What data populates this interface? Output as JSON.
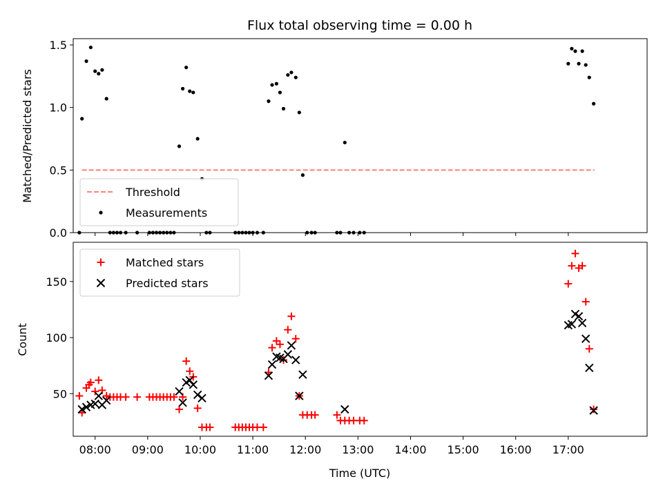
{
  "chart_data": {
    "title": "Flux total observing time = 0.00 h",
    "xlabel": "Time (UTC)",
    "x_ticks": [
      "08:00",
      "09:00",
      "10:00",
      "11:00",
      "12:00",
      "13:00",
      "14:00",
      "15:00",
      "16:00",
      "17:00"
    ],
    "xlim": [
      "07:35",
      "18:30"
    ],
    "panels": [
      {
        "type": "scatter",
        "ylabel": "Matched/Predicted stars",
        "ylim": [
          0,
          1.55
        ],
        "y_ticks": [
          "0.0",
          "0.5",
          "1.0",
          "1.5"
        ],
        "y_tick_values": [
          0,
          0.5,
          1.0,
          1.5
        ],
        "legend_position": "lower-left",
        "threshold": {
          "name": "Threshold",
          "value": 0.5,
          "x_start": "07:45",
          "x_end": "17:30",
          "color": "#ff7f7f",
          "style": "dashed"
        },
        "series": [
          {
            "name": "Measurements",
            "marker": "dot",
            "color": "#000000",
            "points": [
              [
                "07:42",
                0.0
              ],
              [
                "07:45",
                0.91
              ],
              [
                "07:50",
                1.37
              ],
              [
                "07:55",
                1.48
              ],
              [
                "08:00",
                1.29
              ],
              [
                "08:04",
                1.27
              ],
              [
                "08:08",
                1.3
              ],
              [
                "08:13",
                1.07
              ],
              [
                "08:17",
                0.0
              ],
              [
                "08:21",
                0.0
              ],
              [
                "08:25",
                0.0
              ],
              [
                "08:29",
                0.0
              ],
              [
                "08:35",
                0.0
              ],
              [
                "08:48",
                0.0
              ],
              [
                "09:02",
                0.0
              ],
              [
                "09:06",
                0.0
              ],
              [
                "09:10",
                0.0
              ],
              [
                "09:14",
                0.0
              ],
              [
                "09:18",
                0.0
              ],
              [
                "09:22",
                0.0
              ],
              [
                "09:26",
                0.0
              ],
              [
                "09:30",
                0.0
              ],
              [
                "09:36",
                0.69
              ],
              [
                "09:40",
                1.15
              ],
              [
                "09:44",
                1.32
              ],
              [
                "09:48",
                1.13
              ],
              [
                "09:52",
                1.12
              ],
              [
                "09:57",
                0.75
              ],
              [
                "10:02",
                0.43
              ],
              [
                "10:07",
                0.0
              ],
              [
                "10:11",
                0.0
              ],
              [
                "10:40",
                0.0
              ],
              [
                "10:44",
                0.0
              ],
              [
                "10:48",
                0.0
              ],
              [
                "10:52",
                0.0
              ],
              [
                "10:56",
                0.0
              ],
              [
                "11:00",
                0.0
              ],
              [
                "11:05",
                0.0
              ],
              [
                "11:12",
                0.0
              ],
              [
                "11:18",
                1.05
              ],
              [
                "11:22",
                1.18
              ],
              [
                "11:27",
                1.19
              ],
              [
                "11:31",
                1.12
              ],
              [
                "11:35",
                0.99
              ],
              [
                "11:40",
                1.26
              ],
              [
                "11:44",
                1.28
              ],
              [
                "11:49",
                1.24
              ],
              [
                "11:53",
                0.96
              ],
              [
                "11:57",
                0.46
              ],
              [
                "12:02",
                0.0
              ],
              [
                "12:07",
                0.0
              ],
              [
                "12:11",
                0.0
              ],
              [
                "12:36",
                0.0
              ],
              [
                "12:40",
                0.0
              ],
              [
                "12:45",
                0.72
              ],
              [
                "12:50",
                0.0
              ],
              [
                "12:55",
                0.0
              ],
              [
                "13:02",
                0.0
              ],
              [
                "13:07",
                0.0
              ],
              [
                "17:00",
                1.35
              ],
              [
                "17:04",
                1.47
              ],
              [
                "17:08",
                1.45
              ],
              [
                "17:12",
                1.35
              ],
              [
                "17:16",
                1.45
              ],
              [
                "17:20",
                1.34
              ],
              [
                "17:24",
                1.24
              ],
              [
                "17:29",
                1.03
              ]
            ]
          }
        ]
      },
      {
        "type": "scatter",
        "ylabel": "Count",
        "ylim": [
          12,
          185
        ],
        "y_ticks": [
          "50",
          "100",
          "150"
        ],
        "y_tick_values": [
          50,
          100,
          150
        ],
        "legend_position": "upper-left",
        "series": [
          {
            "name": "Matched stars",
            "marker": "plus",
            "color": "#ff0000",
            "points": [
              [
                "07:42",
                48
              ],
              [
                "07:45",
                33
              ],
              [
                "07:50",
                55
              ],
              [
                "07:53",
                58
              ],
              [
                "07:55",
                60
              ],
              [
                "08:00",
                52
              ],
              [
                "08:04",
                62
              ],
              [
                "08:08",
                53
              ],
              [
                "08:13",
                48
              ],
              [
                "08:17",
                47
              ],
              [
                "08:21",
                47
              ],
              [
                "08:25",
                47
              ],
              [
                "08:29",
                47
              ],
              [
                "08:35",
                47
              ],
              [
                "08:48",
                47
              ],
              [
                "09:02",
                47
              ],
              [
                "09:06",
                47
              ],
              [
                "09:10",
                47
              ],
              [
                "09:14",
                47
              ],
              [
                "09:18",
                47
              ],
              [
                "09:22",
                47
              ],
              [
                "09:26",
                47
              ],
              [
                "09:30",
                47
              ],
              [
                "09:36",
                36
              ],
              [
                "09:40",
                47
              ],
              [
                "09:44",
                79
              ],
              [
                "09:48",
                70
              ],
              [
                "09:52",
                65
              ],
              [
                "09:57",
                37
              ],
              [
                "10:02",
                20
              ],
              [
                "10:07",
                20
              ],
              [
                "10:11",
                20
              ],
              [
                "10:40",
                20
              ],
              [
                "10:44",
                20
              ],
              [
                "10:48",
                20
              ],
              [
                "10:52",
                20
              ],
              [
                "10:56",
                20
              ],
              [
                "11:00",
                20
              ],
              [
                "11:05",
                20
              ],
              [
                "11:12",
                20
              ],
              [
                "11:18",
                69
              ],
              [
                "11:22",
                91
              ],
              [
                "11:27",
                97
              ],
              [
                "11:31",
                94
              ],
              [
                "11:35",
                80
              ],
              [
                "11:40",
                107
              ],
              [
                "11:44",
                119
              ],
              [
                "11:49",
                99
              ],
              [
                "11:53",
                48
              ],
              [
                "11:57",
                31
              ],
              [
                "12:02",
                31
              ],
              [
                "12:07",
                31
              ],
              [
                "12:11",
                31
              ],
              [
                "12:36",
                31
              ],
              [
                "12:40",
                26
              ],
              [
                "12:45",
                26
              ],
              [
                "12:50",
                26
              ],
              [
                "12:55",
                26
              ],
              [
                "13:02",
                26
              ],
              [
                "13:07",
                26
              ],
              [
                "17:00",
                148
              ],
              [
                "17:04",
                164
              ],
              [
                "17:08",
                175
              ],
              [
                "17:12",
                162
              ],
              [
                "17:16",
                164
              ],
              [
                "17:20",
                132
              ],
              [
                "17:24",
                90
              ],
              [
                "17:29",
                36
              ]
            ]
          },
          {
            "name": "Predicted stars",
            "marker": "x",
            "color": "#000000",
            "points": [
              [
                "07:45",
                36
              ],
              [
                "07:50",
                38
              ],
              [
                "07:55",
                40
              ],
              [
                "08:00",
                41
              ],
              [
                "08:04",
                48
              ],
              [
                "08:08",
                40
              ],
              [
                "08:13",
                44
              ],
              [
                "09:36",
                52
              ],
              [
                "09:40",
                42
              ],
              [
                "09:44",
                60
              ],
              [
                "09:48",
                62
              ],
              [
                "09:52",
                58
              ],
              [
                "09:57",
                49
              ],
              [
                "10:02",
                46
              ],
              [
                "11:18",
                66
              ],
              [
                "11:22",
                76
              ],
              [
                "11:27",
                83
              ],
              [
                "11:31",
                82
              ],
              [
                "11:35",
                81
              ],
              [
                "11:40",
                85
              ],
              [
                "11:44",
                93
              ],
              [
                "11:49",
                80
              ],
              [
                "11:53",
                48
              ],
              [
                "11:57",
                67
              ],
              [
                "12:45",
                36
              ],
              [
                "17:00",
                111
              ],
              [
                "17:04",
                112
              ],
              [
                "17:08",
                121
              ],
              [
                "17:12",
                119
              ],
              [
                "17:16",
                113
              ],
              [
                "17:20",
                99
              ],
              [
                "17:24",
                73
              ],
              [
                "17:29",
                35
              ]
            ]
          }
        ]
      }
    ]
  }
}
